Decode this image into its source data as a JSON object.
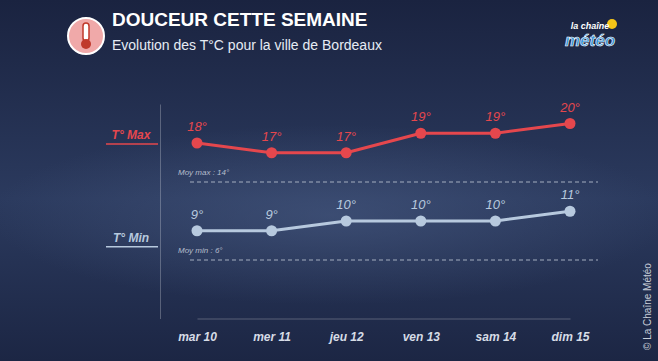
{
  "chart_data": {
    "type": "line",
    "title": "DOUCEUR CETTE SEMAINE",
    "subtitle": "Evolution des T°C pour la ville de Bordeaux",
    "logo": [
      "la chaîne",
      "météo"
    ],
    "source": "© La Chaîne Météo",
    "categories": [
      "mar 10",
      "mer 11",
      "jeu 12",
      "ven 13",
      "sam 14",
      "dim 15"
    ],
    "series": [
      {
        "name": "T° Max",
        "color": "#e5474d",
        "marker": "circle",
        "values": [
          18,
          17,
          17,
          19,
          19,
          20
        ],
        "value_labels": [
          "18°",
          "17°",
          "17°",
          "19°",
          "19°",
          "20°"
        ]
      },
      {
        "name": "T° Min",
        "color": "#b7c9de",
        "marker": "circle",
        "values": [
          9,
          9,
          10,
          10,
          10,
          11
        ],
        "value_labels": [
          "9°",
          "9°",
          "10°",
          "10°",
          "10°",
          "11°"
        ]
      }
    ],
    "annotations": [
      {
        "text": "Moy max : 14°",
        "value": 14
      },
      {
        "text": "Moy min : 6°",
        "value": 6
      }
    ],
    "ylim": [
      0,
      22
    ],
    "data_labels": true,
    "tick_labels": "x"
  }
}
